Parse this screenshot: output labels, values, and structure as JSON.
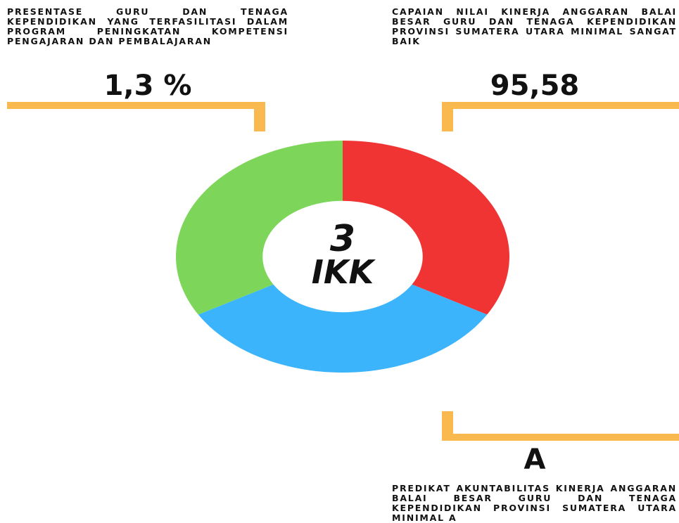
{
  "center": {
    "number": "3",
    "label": "IKK"
  },
  "indicators": [
    {
      "value": "1,3 %",
      "description": "Presentase guru dan tenaga kependidikan yang terfasilitasi dalam program peningkatan kompetensi pengajaran dan pembalajaran"
    },
    {
      "value": "95,58",
      "description": "Capaian nilai kinerja anggaran Balai Besar Guru dan Tenaga Kependidikan Provinsi Sumatera Utara minimal sangat baik"
    },
    {
      "value": "A",
      "description": "Predikat akuntabilitas kinerja anggaran Balai Besar Guru dan Tenaga Kependidikan Provinsi Sumatera Utara minimal A"
    }
  ]
}
